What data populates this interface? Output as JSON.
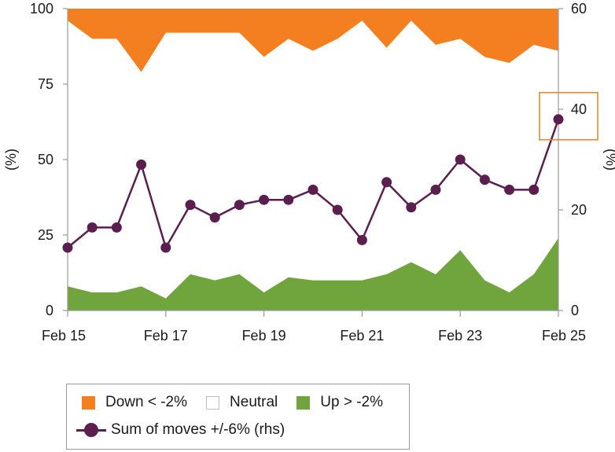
{
  "colors": {
    "down": "#f47f20",
    "neutral": "#ffffff",
    "up": "#70a43c",
    "line": "#5a1f4e",
    "highlight": "#f47f20",
    "axis": "#9a9a9a"
  },
  "chart_data": {
    "type": "area",
    "x": [
      "Feb 15",
      "Feb 15.5",
      "Feb 16",
      "Feb 16.5",
      "Feb 17",
      "Feb 17.5",
      "Feb 18",
      "Feb 18.5",
      "Feb 19",
      "Feb 19.5",
      "Feb 20",
      "Feb 20.5",
      "Feb 21",
      "Feb 21.5",
      "Feb 22",
      "Feb 22.5",
      "Feb 23",
      "Feb 23.5",
      "Feb 24",
      "Feb 24.5",
      "Feb 25"
    ],
    "x_tick_labels": [
      "Feb 15",
      "Feb 17",
      "Feb 19",
      "Feb 21",
      "Feb 23",
      "Feb 25"
    ],
    "ylabel_left": "(%)",
    "ylabel_right": "(%)",
    "ylim_left": [
      0,
      100
    ],
    "ylim_right": [
      0,
      60
    ],
    "yticks_left": [
      "0",
      "25",
      "50",
      "75",
      "100"
    ],
    "yticks_right": [
      "0",
      "20",
      "40",
      "60"
    ],
    "series": [
      {
        "name": "Up > -2%",
        "kind": "stacked-area",
        "values": [
          8,
          6,
          6,
          8,
          4,
          12,
          10,
          12,
          6,
          11,
          10,
          10,
          10,
          12,
          16,
          12,
          20,
          10,
          6,
          12,
          24
        ]
      },
      {
        "name": "Neutral",
        "kind": "stacked-area",
        "values": [
          88,
          84,
          84,
          71,
          88,
          80,
          82,
          80,
          78,
          79,
          76,
          80,
          86,
          75,
          80,
          76,
          70,
          74,
          76,
          76,
          62
        ]
      },
      {
        "name": "Down < -2%",
        "kind": "stacked-area",
        "values": [
          4,
          10,
          10,
          21,
          8,
          8,
          8,
          8,
          16,
          10,
          14,
          10,
          4,
          13,
          4,
          12,
          10,
          16,
          18,
          12,
          14
        ]
      },
      {
        "name": "Sum of moves +/-6% (rhs)",
        "kind": "line",
        "axis": "right",
        "values": [
          12.5,
          16.5,
          16.5,
          29,
          12.5,
          21,
          18.5,
          21,
          22,
          22,
          24,
          20,
          14,
          25.5,
          20.5,
          24,
          30,
          26,
          24,
          24,
          38
        ]
      }
    ],
    "annotations": [
      {
        "type": "box",
        "target": "Feb 25 line point"
      }
    ],
    "legend": {
      "placement": "bottom-left",
      "items": [
        {
          "label": "Down < -2%",
          "kind": "box",
          "color_key": "down"
        },
        {
          "label": "Neutral",
          "kind": "box",
          "color_key": "neutral"
        },
        {
          "label": "Up > -2%",
          "kind": "box",
          "color_key": "up"
        },
        {
          "label": "Sum of moves +/-6% (rhs)",
          "kind": "line",
          "color_key": "line"
        }
      ]
    }
  }
}
